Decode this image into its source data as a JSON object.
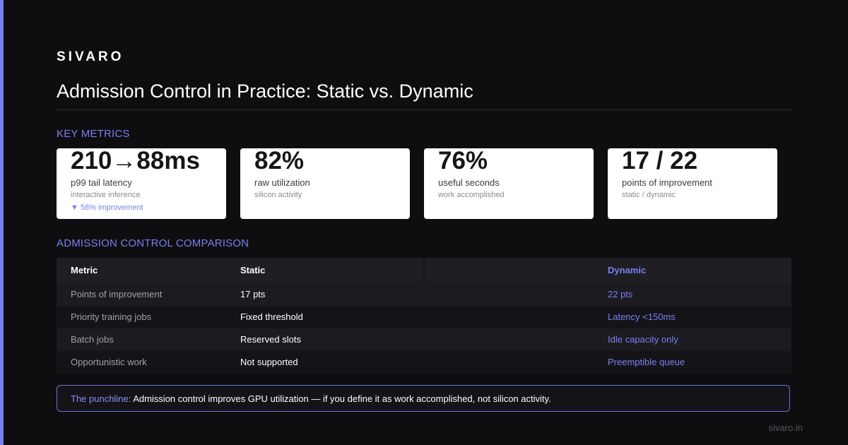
{
  "brand": "SIVARO",
  "title": "Admission Control in Practice: Static vs. Dynamic",
  "sections": {
    "metrics_label": "KEY METRICS",
    "comparison_label": "ADMISSION CONTROL COMPARISON"
  },
  "metrics": [
    {
      "value": "210→88ms",
      "label": "p99 tail latency",
      "sub": "interactive inference",
      "delta": "▼ 58% improvement"
    },
    {
      "value": "82%",
      "label": "raw utilization",
      "sub": "silicon activity"
    },
    {
      "value": "76%",
      "label": "useful seconds",
      "sub": "work accomplished"
    },
    {
      "value": "17 / 22",
      "label": "points of improvement",
      "sub": "static / dynamic"
    }
  ],
  "table": {
    "headers": [
      "Metric",
      "Static",
      "Dynamic"
    ],
    "rows": [
      [
        "Points of improvement",
        "17 pts",
        "22 pts"
      ],
      [
        "Priority training jobs",
        "Fixed threshold",
        "Latency <150ms"
      ],
      [
        "Batch jobs",
        "Reserved slots",
        "Idle capacity only"
      ],
      [
        "Opportunistic work",
        "Not supported",
        "Preemptible queue"
      ]
    ]
  },
  "punchline": {
    "lead": "The punchline:",
    "text": "Admission control improves GPU utilization — if you define it as work accomplished, not silicon activity."
  },
  "footer_url": "sivaro.in",
  "colors": {
    "accent": "#7b7ff0",
    "background": "#0e0e11",
    "card": "#ffffff"
  }
}
